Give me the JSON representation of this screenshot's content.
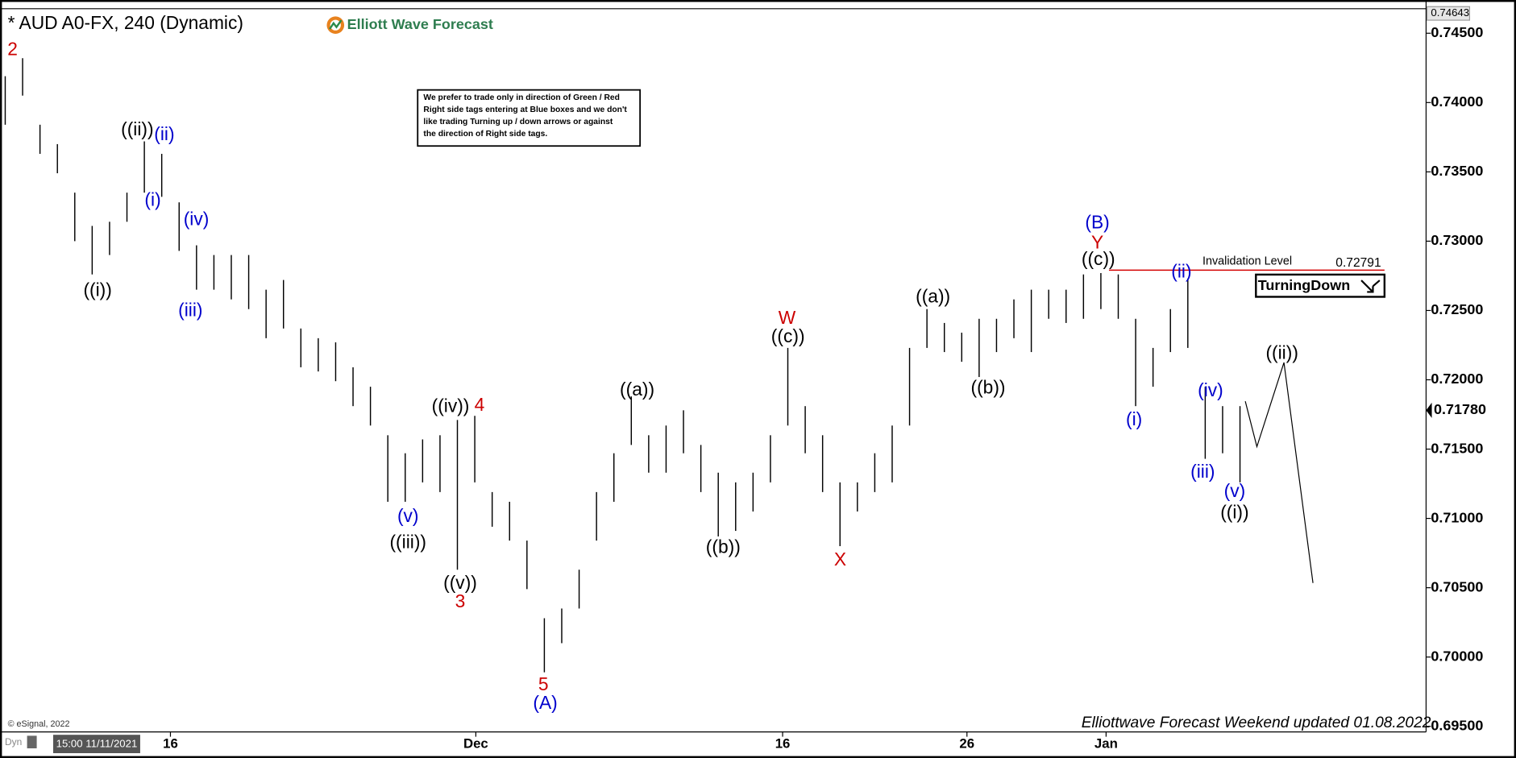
{
  "chart_data": {
    "type": "ohlc",
    "title": "* AUD A0-FX, 240 (Dynamic)",
    "brand": "Elliott Wave Forecast",
    "note": [
      "We prefer to trade only in direction of Green / Red",
      "Right side tags entering at Blue boxes and we don't",
      "like trading Turning up / down arrows or against",
      "the direction of Right side tags."
    ],
    "footer": "Elliottwave Forecast Weekend updated 01.08.2022",
    "copyright": "© eSignal, 2022",
    "mode": "Dyn",
    "start_time": "15:00 11/11/2021",
    "signal": "TurningDown",
    "invalidation_label": "Invalidation Level",
    "invalidation_level": 0.72791,
    "last_high": 0.74643,
    "current_price": {
      "value": 0.7178,
      "label": "0.71780"
    },
    "color": "#000000",
    "invalidation_color": "#d40000",
    "high": [
      0.7419,
      0.7432,
      0.7384,
      0.737,
      0.7335,
      0.7311,
      0.7314,
      0.7335,
      0.7372,
      0.7363,
      0.7328,
      0.7297,
      0.729,
      0.729,
      0.729,
      0.7265,
      0.7272,
      0.7237,
      0.723,
      0.7227,
      0.7209,
      0.7195,
      0.716,
      0.7147,
      0.7157,
      0.716,
      0.7171,
      0.7174,
      0.7119,
      0.7112,
      0.7084,
      0.7028,
      0.7035,
      0.7063,
      0.7119,
      0.7147,
      0.7188,
      0.716,
      0.7167,
      0.7178,
      0.7153,
      0.7133,
      0.7126,
      0.7133,
      0.716,
      0.7223,
      0.7181,
      0.716,
      0.7126,
      0.7126,
      0.7147,
      0.7167,
      0.7223,
      0.7251,
      0.7241,
      0.7234,
      0.7244,
      0.7244,
      0.7258,
      0.7265,
      0.7265,
      0.7265,
      0.7276,
      0.7277,
      0.7276,
      0.7244,
      0.7223,
      0.7251,
      0.7273,
      0.7195,
      0.7181,
      0.7181
    ],
    "low": [
      0.7384,
      0.7405,
      0.7363,
      0.7349,
      0.73,
      0.7276,
      0.729,
      0.7314,
      0.7335,
      0.7332,
      0.7293,
      0.7265,
      0.7265,
      0.7258,
      0.7251,
      0.723,
      0.7237,
      0.7209,
      0.7206,
      0.7199,
      0.7181,
      0.7167,
      0.7112,
      0.7112,
      0.7126,
      0.7119,
      0.7063,
      0.7126,
      0.7094,
      0.7084,
      0.7049,
      0.6989,
      0.701,
      0.7035,
      0.7084,
      0.7112,
      0.7153,
      0.7133,
      0.7133,
      0.7147,
      0.7119,
      0.7087,
      0.7091,
      0.7105,
      0.7126,
      0.7167,
      0.7147,
      0.7119,
      0.708,
      0.7105,
      0.7119,
      0.7126,
      0.7167,
      0.7223,
      0.722,
      0.7213,
      0.7202,
      0.722,
      0.723,
      0.722,
      0.7244,
      0.7241,
      0.7244,
      0.7251,
      0.7244,
      0.7181,
      0.7195,
      0.722,
      0.7223,
      0.7143,
      0.7147,
      0.7126
    ],
    "xlim": [
      -0.3,
      81.7
    ],
    "xticks": [
      {
        "value": 9.5,
        "label": "16"
      },
      {
        "value": 27.06,
        "label": "Dec"
      },
      {
        "value": 44.7,
        "label": "16"
      },
      {
        "value": 55.3,
        "label": "26"
      },
      {
        "value": 63.3,
        "label": "Jan"
      }
    ],
    "ylim": [
      0.6946,
      0.7467
    ],
    "yticks": [
      {
        "value": 0.695,
        "label": "0.69500"
      },
      {
        "value": 0.7,
        "label": "0.70000"
      },
      {
        "value": 0.705,
        "label": "0.70500"
      },
      {
        "value": 0.71,
        "label": "0.71000"
      },
      {
        "value": 0.715,
        "label": "0.71500"
      },
      {
        "value": 0.72,
        "label": "0.72000"
      },
      {
        "value": 0.725,
        "label": "0.72500"
      },
      {
        "value": 0.73,
        "label": "0.73000"
      },
      {
        "value": 0.735,
        "label": "0.73500"
      },
      {
        "value": 0.74,
        "label": "0.74000"
      },
      {
        "value": 0.745,
        "label": "0.74500"
      }
    ],
    "wave_labels": [
      {
        "text": "2",
        "color": "#cc0000"
      },
      {
        "text": "((i))",
        "color": "#000000"
      },
      {
        "text": "((ii))",
        "color": "#000000"
      },
      {
        "text": "(ii)",
        "color": "#0000cc"
      },
      {
        "text": "(i)",
        "color": "#0000cc"
      },
      {
        "text": "(iv)",
        "color": "#0000cc"
      },
      {
        "text": "(iii)",
        "color": "#0000cc"
      },
      {
        "text": "(v)",
        "color": "#0000cc"
      },
      {
        "text": "((iii))",
        "color": "#000000"
      },
      {
        "text": "((iv))",
        "color": "#000000"
      },
      {
        "text": "4",
        "color": "#cc0000"
      },
      {
        "text": "((v))",
        "color": "#000000"
      },
      {
        "text": "3",
        "color": "#cc0000"
      },
      {
        "text": "5",
        "color": "#cc0000"
      },
      {
        "text": "(A)",
        "color": "#0000cc"
      },
      {
        "text": "((a))",
        "color": "#000000"
      },
      {
        "text": "((b))",
        "color": "#000000"
      },
      {
        "text": "W",
        "color": "#cc0000"
      },
      {
        "text": "((c))",
        "color": "#000000"
      },
      {
        "text": "X",
        "color": "#cc0000"
      },
      {
        "text": "((a))",
        "color": "#000000"
      },
      {
        "text": "((b))",
        "color": "#000000"
      },
      {
        "text": "(B)",
        "color": "#0000cc"
      },
      {
        "text": "Y",
        "color": "#cc0000"
      },
      {
        "text": "((c))",
        "color": "#000000"
      },
      {
        "text": "(ii)",
        "color": "#0000cc"
      },
      {
        "text": "(i)",
        "color": "#0000cc"
      },
      {
        "text": "(iv)",
        "color": "#0000cc"
      },
      {
        "text": "(iii)",
        "color": "#0000cc"
      },
      {
        "text": "(v)",
        "color": "#0000cc"
      },
      {
        "text": "((i))",
        "color": "#000000"
      },
      {
        "text": "((ii))",
        "color": "#000000"
      }
    ]
  }
}
